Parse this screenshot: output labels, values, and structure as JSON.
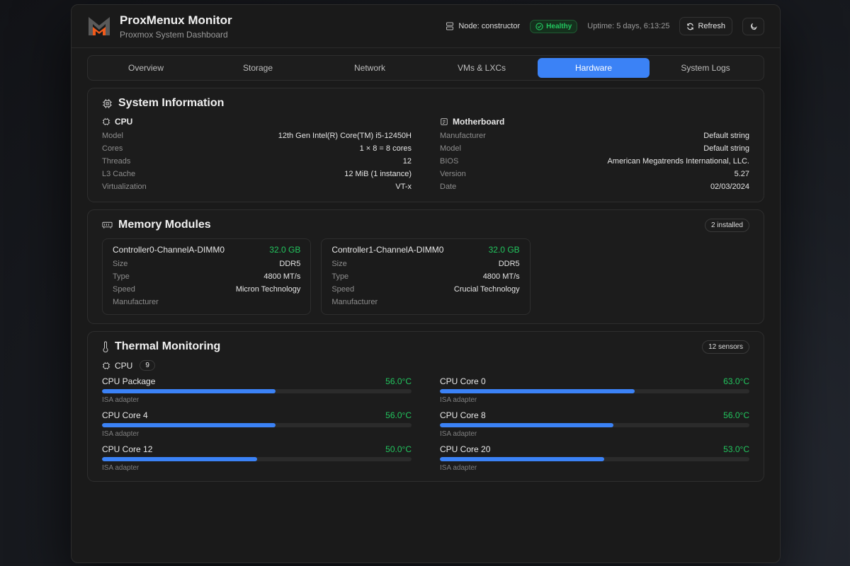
{
  "header": {
    "title": "ProxMenux Monitor",
    "subtitle": "Proxmox System Dashboard",
    "node": "Node: constructor",
    "status": "Healthy",
    "uptime": "Uptime: 5 days, 6:13:25",
    "refresh_label": "Refresh",
    "theme_icon": "moon-icon"
  },
  "tabs": [
    {
      "label": "Overview"
    },
    {
      "label": "Storage"
    },
    {
      "label": "Network"
    },
    {
      "label": "VMs & LXCs"
    },
    {
      "label": "Hardware",
      "active": true
    },
    {
      "label": "System Logs"
    }
  ],
  "system_info": {
    "title": "System Information",
    "cpu": {
      "title": "CPU",
      "rows": [
        {
          "k": "Model",
          "v": "12th Gen Intel(R) Core(TM) i5-12450H"
        },
        {
          "k": "Cores",
          "v": "1 × 8 = 8 cores"
        },
        {
          "k": "Threads",
          "v": "12"
        },
        {
          "k": "L3 Cache",
          "v": "12 MiB (1 instance)"
        },
        {
          "k": "Virtualization",
          "v": "VT-x"
        }
      ]
    },
    "motherboard": {
      "title": "Motherboard",
      "rows": [
        {
          "k": "Manufacturer",
          "v": "Default string"
        },
        {
          "k": "Model",
          "v": "Default string"
        },
        {
          "k": "BIOS",
          "v": "American Megatrends International, LLC."
        },
        {
          "k": "Version",
          "v": "5.27"
        },
        {
          "k": "Date",
          "v": "02/03/2024"
        }
      ]
    }
  },
  "memory": {
    "title": "Memory Modules",
    "badge": "2 installed",
    "modules": [
      {
        "name": "Controller0-ChannelA-DIMM0",
        "size_value": "32.0 GB",
        "rows": [
          {
            "k": "Size",
            "v": "DDR5"
          },
          {
            "k": "Type",
            "v": "4800 MT/s"
          },
          {
            "k": "Speed",
            "v": "Micron Technology"
          },
          {
            "k": "Manufacturer",
            "v": ""
          }
        ]
      },
      {
        "name": "Controller1-ChannelA-DIMM0",
        "size_value": "32.0 GB",
        "rows": [
          {
            "k": "Size",
            "v": "DDR5"
          },
          {
            "k": "Type",
            "v": "4800 MT/s"
          },
          {
            "k": "Speed",
            "v": "Crucial Technology"
          },
          {
            "k": "Manufacturer",
            "v": ""
          }
        ]
      }
    ]
  },
  "thermal": {
    "title": "Thermal Monitoring",
    "badge": "12 sensors",
    "group": "CPU",
    "group_count": "9",
    "sensors": [
      {
        "name": "CPU Package",
        "temp": "56.0°C",
        "value": 56,
        "adapter": "ISA adapter"
      },
      {
        "name": "CPU Core 0",
        "temp": "63.0°C",
        "value": 63,
        "adapter": "ISA adapter"
      },
      {
        "name": "CPU Core 4",
        "temp": "56.0°C",
        "value": 56,
        "adapter": "ISA adapter"
      },
      {
        "name": "CPU Core 8",
        "temp": "56.0°C",
        "value": 56,
        "adapter": "ISA adapter"
      },
      {
        "name": "CPU Core 12",
        "temp": "50.0°C",
        "value": 50,
        "adapter": "ISA adapter"
      },
      {
        "name": "CPU Core 20",
        "temp": "53.0°C",
        "value": 53,
        "adapter": "ISA adapter"
      }
    ]
  },
  "colors": {
    "accent": "#3b82f6",
    "healthy": "#22c55e",
    "logo_orange": "#f05a1a"
  }
}
